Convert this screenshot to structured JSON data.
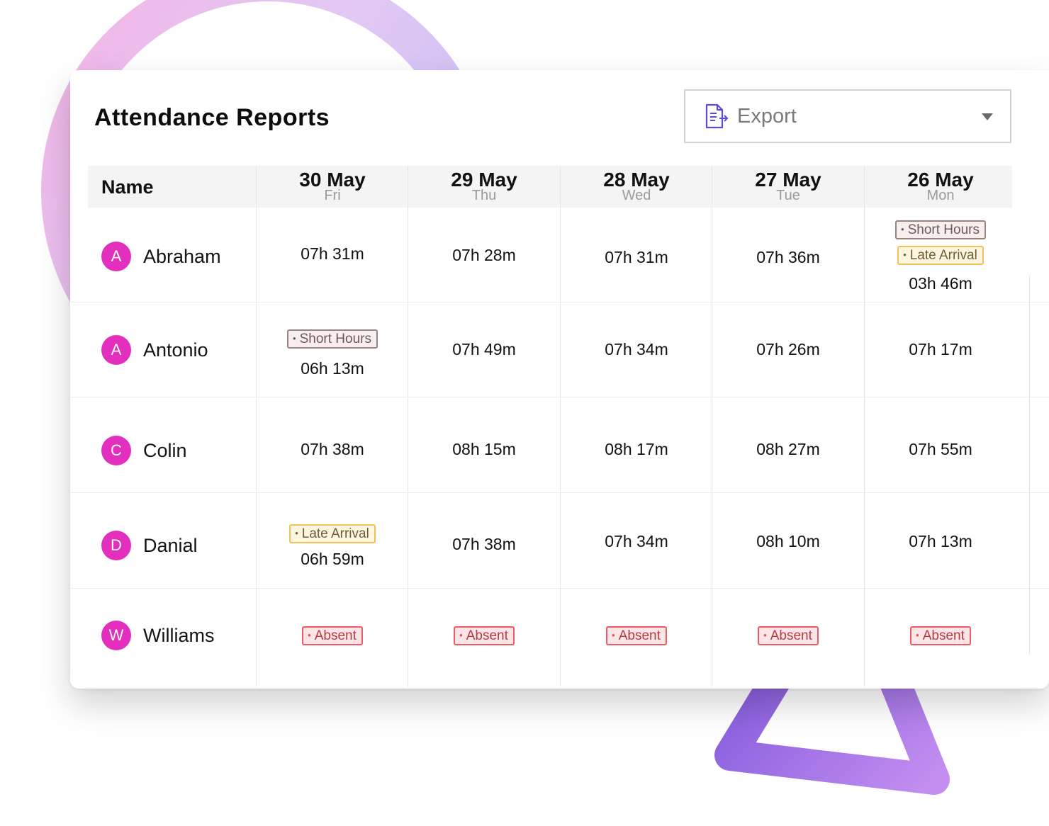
{
  "header": {
    "title": "Attendance Reports",
    "export_label": "Export"
  },
  "table": {
    "name_header": "Name",
    "columns": [
      {
        "date": "30 May",
        "day": "Fri"
      },
      {
        "date": "29 May",
        "day": "Thu"
      },
      {
        "date": "28 May",
        "day": "Wed"
      },
      {
        "date": "27 May",
        "day": "Tue"
      },
      {
        "date": "26 May",
        "day": "Mon"
      }
    ],
    "rows": [
      {
        "initial": "A",
        "name": "Abraham",
        "cells": [
          {
            "hours": "07h 31m",
            "badges": []
          },
          {
            "hours": "07h 28m",
            "badges": []
          },
          {
            "hours": "07h 31m",
            "badges": []
          },
          {
            "hours": "07h 36m",
            "badges": []
          },
          {
            "hours": "03h 46m",
            "badges": [
              "Short Hours",
              "Late Arrival"
            ]
          }
        ]
      },
      {
        "initial": "A",
        "name": "Antonio",
        "cells": [
          {
            "hours": "06h 13m",
            "badges": [
              "Short Hours"
            ]
          },
          {
            "hours": "07h 49m",
            "badges": []
          },
          {
            "hours": "07h 34m",
            "badges": []
          },
          {
            "hours": "07h 26m",
            "badges": []
          },
          {
            "hours": "07h 17m",
            "badges": []
          }
        ]
      },
      {
        "initial": "C",
        "name": "Colin",
        "cells": [
          {
            "hours": "07h 38m",
            "badges": []
          },
          {
            "hours": "08h 15m",
            "badges": []
          },
          {
            "hours": "08h 17m",
            "badges": []
          },
          {
            "hours": "08h 27m",
            "badges": []
          },
          {
            "hours": "07h 55m",
            "badges": []
          }
        ]
      },
      {
        "initial": "D",
        "name": "Danial",
        "cells": [
          {
            "hours": "06h 59m",
            "badges": [
              "Late Arrival"
            ]
          },
          {
            "hours": "07h 38m",
            "badges": []
          },
          {
            "hours": "07h 34m",
            "badges": []
          },
          {
            "hours": "08h 10m",
            "badges": []
          },
          {
            "hours": "07h 13m",
            "badges": []
          }
        ]
      },
      {
        "initial": "W",
        "name": "Williams",
        "cells": [
          {
            "hours": "",
            "badges": [
              "Absent"
            ]
          },
          {
            "hours": "",
            "badges": [
              "Absent"
            ]
          },
          {
            "hours": "",
            "badges": [
              "Absent"
            ]
          },
          {
            "hours": "",
            "badges": [
              "Absent"
            ]
          },
          {
            "hours": "",
            "badges": [
              "Absent"
            ]
          }
        ]
      }
    ]
  },
  "colors": {
    "avatar": "#e22fbe",
    "short_hours_border": "#9a8383",
    "late_arrival_border": "#f2c15c",
    "absent_border": "#ef5a66",
    "icon_accent": "#5b4bd8"
  },
  "icons": {
    "export": "document-export-icon",
    "dropdown": "caret-down-icon"
  }
}
